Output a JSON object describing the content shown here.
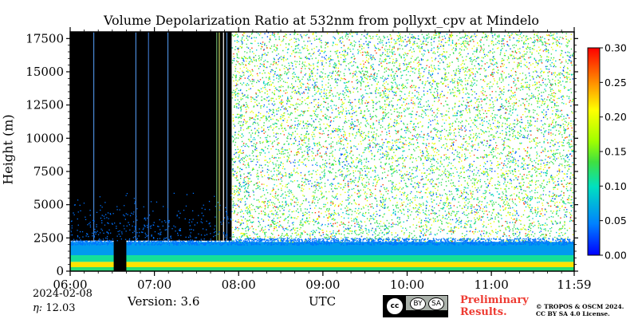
{
  "chart_data": {
    "type": "heatmap",
    "title": "Volume Depolarization Ratio at 532nm from pollyxt_cpv at Mindelo",
    "xlabel": "UTC",
    "ylabel": "Height (m)",
    "x_range": [
      "06:00",
      "11:59"
    ],
    "xlim_hours": [
      6.0,
      11.9833
    ],
    "ylim": [
      0,
      18000
    ],
    "x_tick_labels": [
      "06:00",
      "07:00",
      "08:00",
      "09:00",
      "10:00",
      "11:00",
      "11:59"
    ],
    "x_tick_values": [
      6,
      7,
      8,
      9,
      10,
      11,
      11.9833
    ],
    "y_ticks": [
      0,
      2500,
      5000,
      7500,
      10000,
      12500,
      15000,
      17500
    ],
    "y_tick_labels": [
      "0",
      "2500",
      "5000",
      "7500",
      "10000",
      "12500",
      "15000",
      "17500"
    ],
    "colorbar": {
      "min": 0.0,
      "max": 0.3,
      "ticks": [
        "0.00",
        "0.05",
        "0.10",
        "0.15",
        "0.20",
        "0.25",
        "0.30"
      ],
      "colormap": "jet-like"
    },
    "layers": [
      {
        "from_m": 0,
        "to_m": 300,
        "value": 0.12
      },
      {
        "from_m": 300,
        "to_m": 700,
        "value": 0.22
      },
      {
        "from_m": 700,
        "to_m": 1200,
        "value": 0.11
      },
      {
        "from_m": 1200,
        "to_m": 2200,
        "value": 0.06
      },
      {
        "from_m": 2200,
        "to_m": 18000,
        "value": "noise"
      }
    ],
    "no_signal_periods": [
      {
        "from": "06:00",
        "to": "07:55",
        "above_m": 2300
      },
      {
        "from": "06:31",
        "to": "06:40",
        "above_m": 0
      }
    ],
    "grid": false
  },
  "footer": {
    "date": "2024-02-08",
    "eta_label": "η:",
    "eta_value": "12.03",
    "version": "Version: 3.6",
    "cc_circle": "cc",
    "cc_by": "BY",
    "cc_sa": "SA",
    "preliminary_line1": "Preliminary",
    "preliminary_line2": "Results.",
    "copyright_line1": "© TROPOS & OSCM 2024.",
    "copyright_line2": "CC BY SA 4.0 License."
  }
}
